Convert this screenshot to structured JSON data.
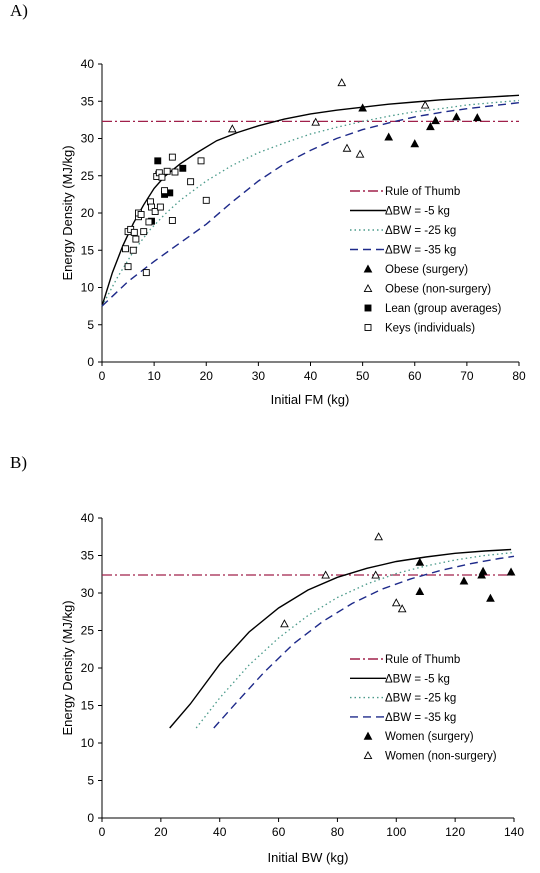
{
  "chart_data": [
    {
      "panel_label": "A)",
      "type": "line",
      "xlabel": "Initial FM (kg)",
      "ylabel": "Energy Density (MJ/kg)",
      "xlim": [
        0,
        80
      ],
      "ylim": [
        0,
        40
      ],
      "xticks": [
        0,
        10,
        20,
        30,
        40,
        50,
        60,
        70,
        80
      ],
      "yticks": [
        0,
        5,
        10,
        15,
        20,
        25,
        30,
        35,
        40
      ],
      "grid": false,
      "legend_position": "right",
      "reference_line": {
        "name": "Rule of Thumb",
        "y": 32.3,
        "color": "#a0204a"
      },
      "lines": [
        {
          "name": "ΔBW = -5 kg",
          "color": "#000000",
          "dash": "solid",
          "x": [
            0,
            2,
            4,
            6,
            8,
            10,
            12,
            15,
            18,
            22,
            26,
            30,
            35,
            40,
            45,
            50,
            55,
            60,
            65,
            70,
            75,
            80
          ],
          "y": [
            7.5,
            12,
            15.6,
            18.6,
            21.1,
            23.3,
            24.9,
            26.6,
            28,
            29.7,
            30.8,
            31.7,
            32.6,
            33.3,
            33.8,
            34.2,
            34.6,
            34.9,
            35.2,
            35.4,
            35.6,
            35.8
          ]
        },
        {
          "name": "ΔBW = -25 kg",
          "color": "#4a9a8a",
          "dash": "dotted",
          "x": [
            0,
            3,
            6,
            9,
            12,
            15,
            20,
            25,
            30,
            35,
            40,
            45,
            50,
            55,
            60,
            65,
            70,
            75,
            80
          ],
          "y": [
            7.5,
            11.4,
            14.8,
            17.6,
            19.8,
            21.7,
            24.3,
            26.4,
            28.1,
            29.4,
            30.6,
            31.5,
            32.3,
            33,
            33.6,
            34,
            34.5,
            34.8,
            35.1
          ]
        },
        {
          "name": "ΔBW = -35 kg",
          "color": "#1e2a8a",
          "dash": "dashed",
          "x": [
            0,
            5,
            10,
            15,
            20,
            25,
            30,
            35,
            40,
            45,
            50,
            55,
            60,
            65,
            70,
            75,
            80
          ],
          "y": [
            7.5,
            10.8,
            13.5,
            16,
            18.5,
            21.5,
            24.3,
            26.6,
            28.4,
            30,
            31.2,
            32.1,
            32.9,
            33.5,
            34,
            34.4,
            34.8
          ]
        }
      ],
      "scatter": [
        {
          "name": "Obese (surgery)",
          "marker": "triangle-filled",
          "x": [
            50,
            55,
            60,
            63,
            64,
            68,
            72
          ],
          "y": [
            34.1,
            30.2,
            29.3,
            31.6,
            32.4,
            32.9,
            32.8
          ]
        },
        {
          "name": "Obese (non-surgery)",
          "marker": "triangle-open",
          "x": [
            25,
            41,
            46,
            47,
            49.5,
            62
          ],
          "y": [
            31.3,
            32.2,
            37.5,
            28.7,
            27.9,
            34.5
          ]
        },
        {
          "name": "Lean (group averages)",
          "marker": "square-filled",
          "x": [
            9.5,
            10.7,
            10.9,
            12,
            13,
            15.5
          ],
          "y": [
            18.9,
            27,
            25.2,
            22.5,
            22.7,
            26
          ]
        },
        {
          "name": "Keys (individuals)",
          "marker": "square-open",
          "x": [
            4.5,
            5,
            5,
            5.5,
            6,
            6.2,
            6.5,
            7,
            7,
            7.5,
            8,
            8.5,
            9,
            9.3,
            9.5,
            10.2,
            10.5,
            11,
            11.2,
            11.5,
            12,
            12.5,
            13.5,
            13.5,
            14,
            17,
            19,
            20
          ],
          "y": [
            15.2,
            17.5,
            12.8,
            17.8,
            15,
            17.4,
            16.5,
            19.5,
            20,
            19.8,
            17.5,
            12,
            18.8,
            21.5,
            20.8,
            20.2,
            24.9,
            25.4,
            20.8,
            24.8,
            23,
            25.6,
            27.5,
            19,
            25.5,
            24.2,
            27,
            21.7
          ]
        }
      ]
    },
    {
      "panel_label": "B)",
      "type": "line",
      "xlabel": "Initial BW (kg)",
      "ylabel": "Energy Density (MJ/kg)",
      "xlim": [
        0,
        140
      ],
      "ylim": [
        0,
        40
      ],
      "xticks": [
        0,
        20,
        40,
        60,
        80,
        100,
        120,
        140
      ],
      "yticks": [
        0,
        5,
        10,
        15,
        20,
        25,
        30,
        35,
        40
      ],
      "grid": false,
      "legend_position": "right",
      "reference_line": {
        "name": "Rule of Thumb",
        "y": 32.4,
        "color": "#a0204a"
      },
      "lines": [
        {
          "name": "ΔBW = -5 kg",
          "color": "#000000",
          "dash": "solid",
          "x": [
            23,
            30,
            40,
            50,
            60,
            70,
            80,
            90,
            100,
            110,
            120,
            130,
            139
          ],
          "y": [
            12,
            15.2,
            20.5,
            24.8,
            28,
            30.4,
            32.1,
            33.3,
            34.2,
            34.8,
            35.3,
            35.6,
            35.8
          ]
        },
        {
          "name": "ΔBW = -25 kg",
          "color": "#4a9a8a",
          "dash": "dotted",
          "x": [
            32,
            40,
            50,
            60,
            70,
            80,
            90,
            100,
            110,
            120,
            130,
            140
          ],
          "y": [
            12,
            16,
            20.4,
            24,
            27,
            29.4,
            31.2,
            32.6,
            33.6,
            34.4,
            35,
            35.4
          ]
        },
        {
          "name": "ΔBW = -35 kg",
          "color": "#1e2a8a",
          "dash": "dashed",
          "x": [
            38,
            45,
            55,
            65,
            75,
            85,
            95,
            105,
            115,
            125,
            135,
            140
          ],
          "y": [
            12,
            15.1,
            19.4,
            23.2,
            26.2,
            28.6,
            30.5,
            31.9,
            33,
            33.9,
            34.6,
            34.9
          ]
        }
      ],
      "scatter": [
        {
          "name": "Women (surgery)",
          "marker": "triangle-filled",
          "x": [
            108,
            108,
            123,
            129,
            129.5,
            132,
            139
          ],
          "y": [
            34.1,
            30.2,
            31.6,
            32.4,
            32.9,
            29.3,
            32.8
          ]
        },
        {
          "name": "Women (non-surgery)",
          "marker": "triangle-open",
          "x": [
            62,
            76,
            93,
            94,
            100,
            102
          ],
          "y": [
            25.9,
            32.4,
            32.4,
            37.5,
            28.7,
            27.9
          ]
        }
      ]
    }
  ]
}
